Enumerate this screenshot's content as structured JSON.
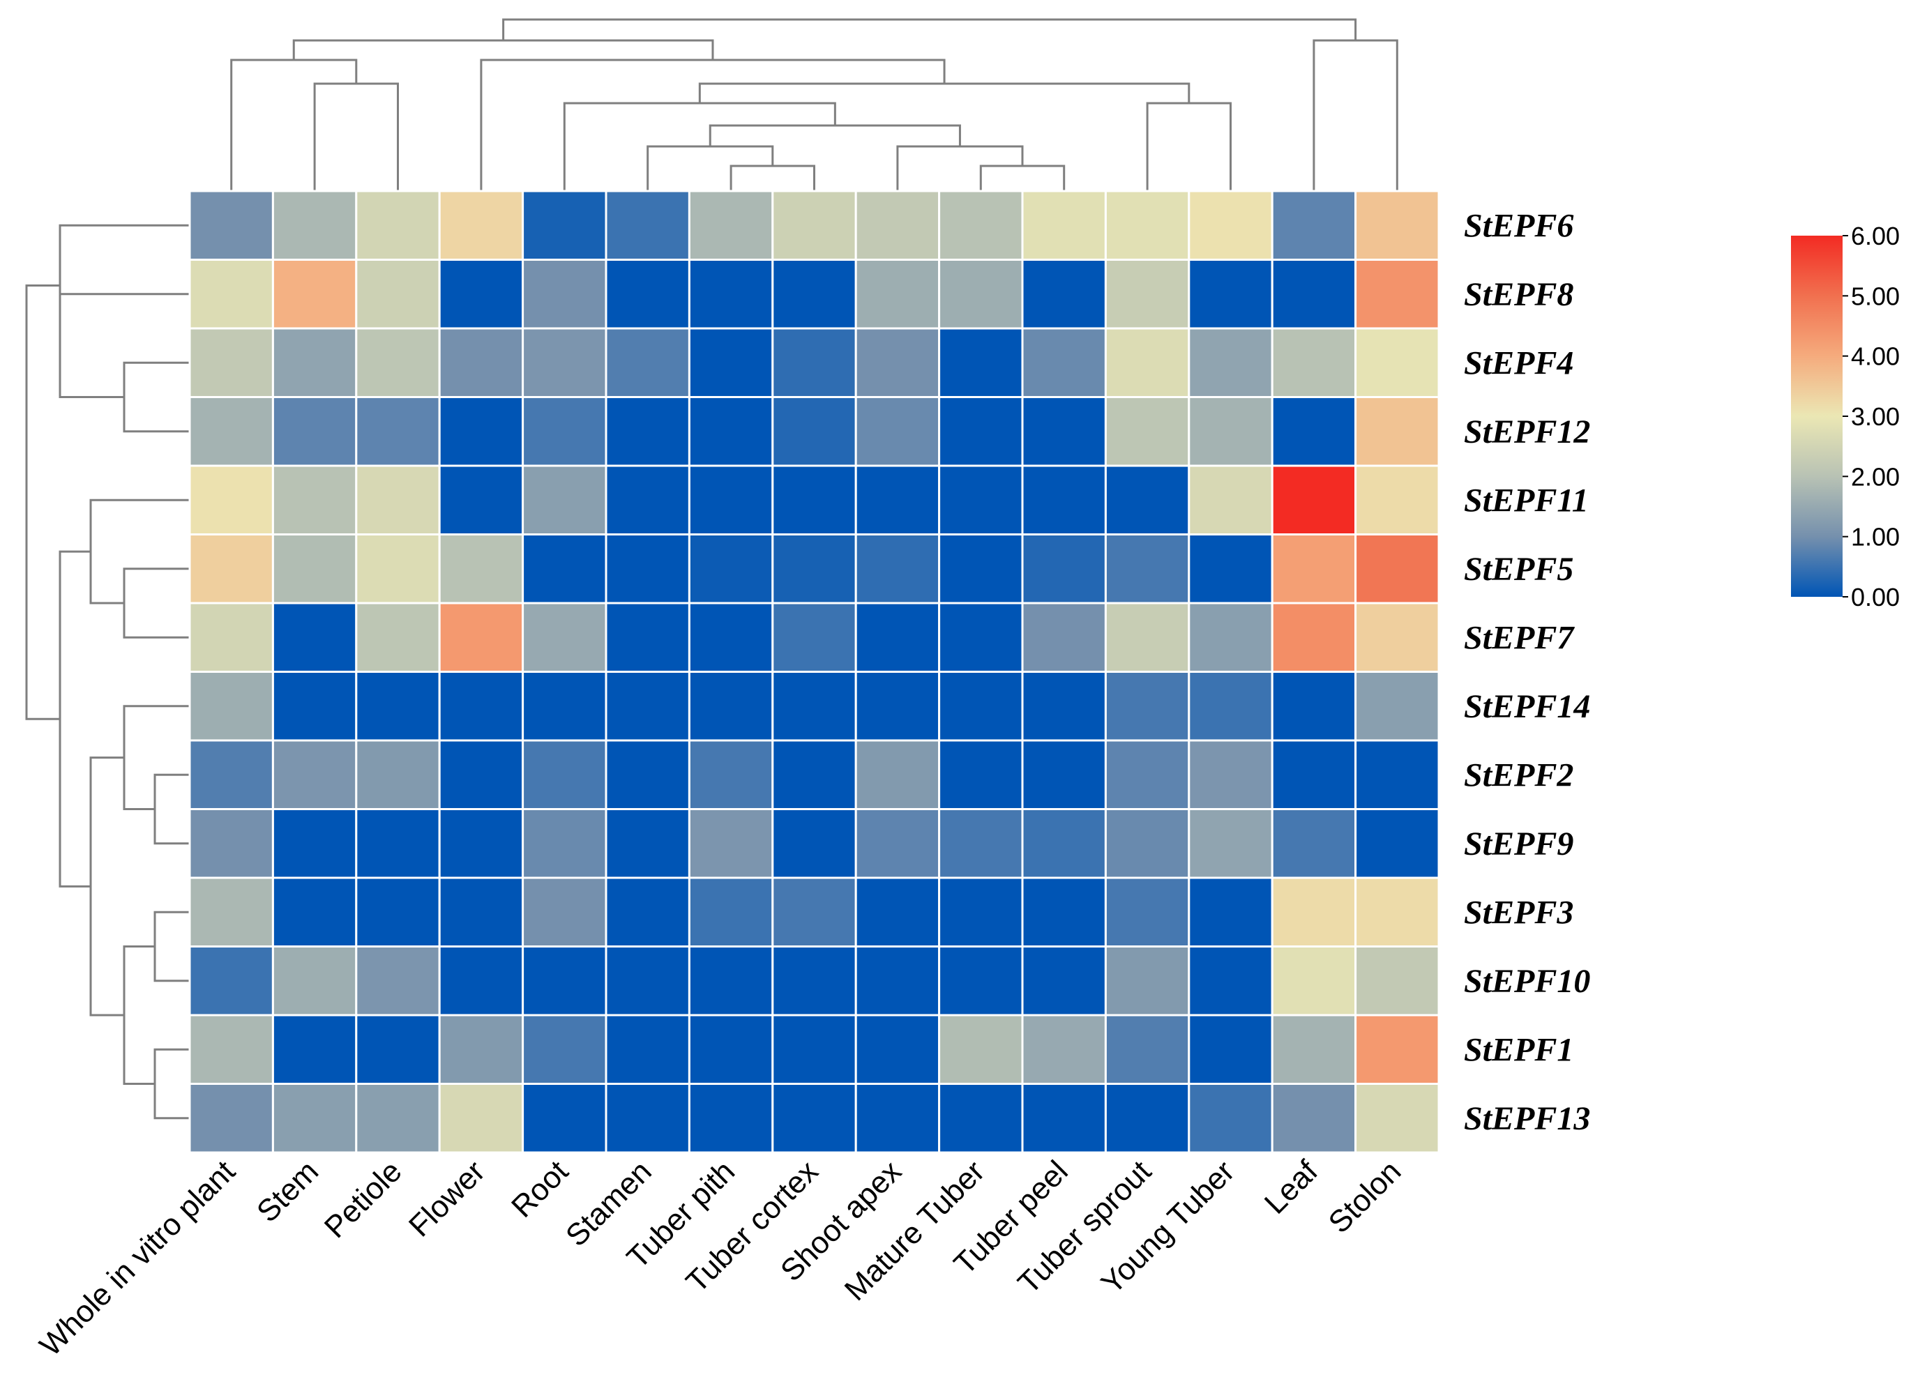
{
  "chart_data": {
    "type": "heatmap",
    "title": "",
    "columns": [
      "Whole in vitro plant",
      "Stem",
      "Petiole",
      "Flower",
      "Root",
      "Stamen",
      "Tuber pith",
      "Tuber cortex",
      "Shoot apex",
      "Mature Tuber",
      "Tuber peel",
      "Tuber sprout",
      "Young Tuber",
      "Leaf",
      "Stolon"
    ],
    "rows": [
      "StEPF6",
      "StEPF8",
      "StEPF4",
      "StEPF12",
      "StEPF11",
      "StEPF5",
      "StEPF7",
      "StEPF14",
      "StEPF2",
      "StEPF9",
      "StEPF3",
      "StEPF10",
      "StEPF1",
      "StEPF13"
    ],
    "values": [
      [
        1.0,
        1.8,
        2.5,
        3.3,
        0.2,
        0.5,
        1.8,
        2.4,
        2.2,
        2.0,
        2.8,
        2.8,
        3.1,
        0.8,
        3.6
      ],
      [
        2.7,
        3.9,
        2.4,
        0.0,
        1.0,
        0.0,
        0.0,
        0.0,
        1.6,
        1.6,
        0.0,
        2.3,
        0.0,
        0.0,
        4.4
      ],
      [
        2.2,
        1.4,
        2.1,
        1.0,
        1.1,
        0.7,
        0.0,
        0.4,
        1.0,
        0.0,
        0.9,
        2.7,
        1.4,
        2.0,
        2.9
      ],
      [
        1.7,
        0.8,
        0.8,
        0.0,
        0.6,
        0.0,
        0.0,
        0.3,
        0.9,
        0.0,
        0.0,
        2.1,
        1.7,
        0.0,
        3.6
      ],
      [
        3.1,
        2.0,
        2.6,
        0.0,
        1.3,
        0.0,
        0.0,
        0.0,
        0.0,
        0.0,
        0.0,
        0.0,
        2.6,
        6.0,
        3.2
      ],
      [
        3.4,
        1.9,
        2.7,
        2.0,
        0.0,
        0.0,
        0.1,
        0.2,
        0.4,
        0.0,
        0.3,
        0.6,
        0.0,
        4.2,
        4.9
      ],
      [
        2.5,
        0.0,
        2.1,
        4.3,
        1.5,
        0.0,
        0.0,
        0.5,
        0.0,
        0.0,
        1.0,
        2.3,
        1.3,
        4.5,
        3.4
      ],
      [
        1.6,
        0.0,
        0.0,
        0.0,
        0.0,
        0.0,
        0.0,
        0.0,
        0.0,
        0.0,
        0.0,
        0.6,
        0.5,
        0.0,
        1.3
      ],
      [
        0.7,
        1.1,
        1.2,
        0.0,
        0.6,
        0.0,
        0.6,
        0.0,
        1.2,
        0.0,
        0.0,
        0.8,
        1.1,
        0.0,
        0.0
      ],
      [
        1.0,
        0.0,
        0.0,
        0.0,
        0.9,
        0.0,
        1.1,
        0.0,
        0.8,
        0.6,
        0.5,
        0.9,
        1.4,
        0.6,
        0.0
      ],
      [
        1.8,
        0.0,
        0.0,
        0.0,
        1.0,
        0.0,
        0.5,
        0.6,
        0.0,
        0.0,
        0.0,
        0.6,
        0.0,
        3.2,
        3.2
      ],
      [
        0.5,
        1.6,
        1.1,
        0.0,
        0.0,
        0.0,
        0.0,
        0.0,
        0.0,
        0.0,
        0.0,
        1.2,
        0.0,
        2.8,
        2.2
      ],
      [
        1.8,
        0.0,
        0.0,
        1.2,
        0.6,
        0.0,
        0.0,
        0.0,
        0.0,
        1.9,
        1.5,
        0.7,
        0.0,
        1.7,
        4.3
      ],
      [
        1.0,
        1.3,
        1.3,
        2.6,
        0.0,
        0.0,
        0.0,
        0.0,
        0.0,
        0.0,
        0.0,
        0.0,
        0.5,
        1.0,
        2.6
      ]
    ],
    "color_scale": {
      "min": 0.0,
      "max": 6.0,
      "stops": [
        {
          "value": 0.0,
          "color": "#0055b5"
        },
        {
          "value": 1.0,
          "color": "#7590ad"
        },
        {
          "value": 2.0,
          "color": "#b8c2b4"
        },
        {
          "value": 3.0,
          "color": "#ebe7b4"
        },
        {
          "value": 4.0,
          "color": "#f5ab7d"
        },
        {
          "value": 5.0,
          "color": "#f1704f"
        },
        {
          "value": 6.0,
          "color": "#f32b23"
        }
      ],
      "tick_labels": [
        "6.00",
        "5.00",
        "4.00",
        "3.00",
        "2.00",
        "1.00",
        "0.00"
      ]
    },
    "row_dendrogram_order": [
      "StEPF6",
      "StEPF8",
      "StEPF4",
      "StEPF12",
      "StEPF11",
      "StEPF5",
      "StEPF7",
      "StEPF14",
      "StEPF2",
      "StEPF9",
      "StEPF3",
      "StEPF10",
      "StEPF1",
      "StEPF13"
    ],
    "column_dendrogram_order": [
      "Whole in vitro plant",
      "Stem",
      "Petiole",
      "Flower",
      "Root",
      "Stamen",
      "Tuber pith",
      "Tuber cortex",
      "Shoot apex",
      "Mature Tuber",
      "Tuber peel",
      "Tuber sprout",
      "Young Tuber",
      "Leaf",
      "Stolon"
    ],
    "legend_position": "right"
  }
}
